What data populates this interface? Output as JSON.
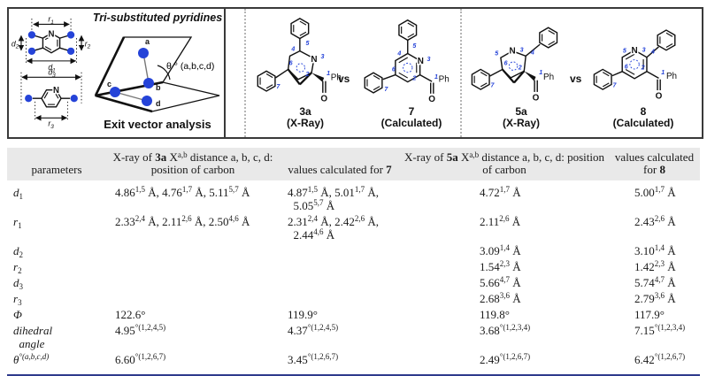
{
  "accent": {
    "blue": "#2543d8",
    "bottom_rule": "#2e3a8c",
    "header_bg": "#e9e9e9"
  },
  "figure": {
    "left": {
      "title": "Tri-substituted pyridines",
      "caption": "Exit vector analysis",
      "angle_label": "θ ° (a,b,c,d)",
      "n_label": "N",
      "point_labels": [
        "a",
        "b",
        "c",
        "d"
      ],
      "dims": {
        "r1": {
          "base": "r",
          "sub": "1"
        },
        "r2": {
          "base": "r",
          "sub": "2"
        },
        "r3": {
          "base": "r",
          "sub": "3"
        },
        "d1": {
          "base": "d",
          "sub": "1"
        },
        "d2": {
          "base": "d",
          "sub": "2"
        },
        "d3": {
          "base": "d",
          "sub": "3"
        }
      }
    },
    "vs": "vs",
    "structures": [
      {
        "id": "3a",
        "method": "(X-Ray)",
        "N": "N",
        "Ph": "Ph",
        "O": "O",
        "nums": [
          "1",
          "2",
          "3",
          "4",
          "5",
          "6",
          "7"
        ]
      },
      {
        "id": "7",
        "method": "(Calculated)",
        "N": "N",
        "Ph": "Ph",
        "O": "O",
        "nums": [
          "1",
          "2",
          "3",
          "4",
          "5",
          "6",
          "7"
        ]
      },
      {
        "id": "5a",
        "method": "(X-Ray)",
        "N": "N",
        "Ph": "Ph",
        "O": "O",
        "nums": [
          "1",
          "2",
          "3",
          "4",
          "5",
          "6",
          "7"
        ]
      },
      {
        "id": "8",
        "method": "(Calculated)",
        "N": "N",
        "Ph": "Ph",
        "O": "O",
        "nums": [
          "1",
          "2",
          "3",
          "4",
          "5",
          "6",
          "7"
        ]
      }
    ]
  },
  "table": {
    "headers": [
      "parameters",
      "X-ray of **3a** X^{a,b} distance a, b, c, d: position of carbon",
      "values calculated for **7**",
      "X-ray of **5a** X^{a,b} distance a, b, c, d: position of carbon",
      "values calculated for **8**"
    ],
    "rows": [
      {
        "param": "*d*_{1}",
        "c1": "4.86^{1,5} Å, 4.76^{1,7} Å, 5.11^{5,7} Å",
        "c2": "4.87^{1,5} Å, 5.01^{1,7} Å,\n  5.05^{5,7} Å",
        "c3": "4.72^{1,7} Å",
        "c4": "5.00^{1,7} Å"
      },
      {
        "param": "*r*_{1}",
        "c1": "2.33^{2,4} Å, 2.11^{2,6} Å, 2.50^{4,6} Å",
        "c2": "2.31^{2,4} Å, 2.42^{2,6} Å,\n  2.44^{4,6} Å",
        "c3": "2.11^{2,6} Å",
        "c4": "2.43^{2,6} Å"
      },
      {
        "param": "*d*_{2}",
        "c1": "",
        "c2": "",
        "c3": "3.09^{1,4} Å",
        "c4": "3.10^{1,4} Å"
      },
      {
        "param": "*r*_{2}",
        "c1": "",
        "c2": "",
        "c3": "1.54^{2,3} Å",
        "c4": "1.42^{2,3} Å"
      },
      {
        "param": "*d*_{3}",
        "c1": "",
        "c2": "",
        "c3": "5.66^{4,7} Å",
        "c4": "5.74^{4,7} Å"
      },
      {
        "param": "*r*_{3}",
        "c1": "",
        "c2": "",
        "c3": "2.68^{3,6} Å",
        "c4": "2.79^{3,6} Å"
      },
      {
        "param": "Φ",
        "c1": "122.6°",
        "c2": "119.9°",
        "c3": "119.8°",
        "c4": "117.9°"
      },
      {
        "param": "dihedral\n  angle",
        "c1": "4.95^{°(1,2,4,5)}",
        "c2": "4.37^{°(1,2,4,5)}",
        "c3": "3.68^{°(1,2,3,4)}",
        "c4": "7.15^{°(1,2,3,4)}"
      },
      {
        "param": "*θ*^{°(a,b,c,d)}",
        "c1": "6.60^{°(1,2,6,7)}",
        "c2": "3.45^{°(1,2,6,7)}",
        "c3": "2.49^{°(1,2,6,7)}",
        "c4": "6.42^{°(1,2,6,7)}"
      }
    ]
  }
}
